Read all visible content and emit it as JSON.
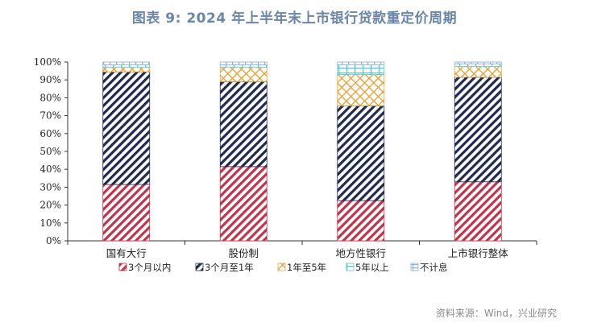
{
  "title": "图表 9:  2024 年上半年末上市银行贷款重定价周期",
  "source": "资料来源：Wind，兴业研究",
  "chart_data": {
    "type": "bar",
    "stacked": true,
    "categories": [
      "国有大行",
      "股份制",
      "地方性银行",
      "上市银行整体"
    ],
    "y_ticks": [
      "0%",
      "10%",
      "20%",
      "30%",
      "40%",
      "50%",
      "60%",
      "70%",
      "80%",
      "90%",
      "100%"
    ],
    "ylim": [
      0,
      100
    ],
    "grid": false,
    "legend_position": "bottom",
    "series": [
      {
        "name": "3个月以内",
        "values": [
          31.5,
          41.5,
          22.5,
          33.0
        ],
        "color": "#c0334a",
        "pattern": "diag-right"
      },
      {
        "name": "3个月至1年",
        "values": [
          63.0,
          47.5,
          53.0,
          58.5
        ],
        "color": "#1f2a4e",
        "pattern": "diag-right"
      },
      {
        "name": "1年至5年",
        "values": [
          2.5,
          8.0,
          17.5,
          6.0
        ],
        "color": "#e8a33a",
        "pattern": "crosshatch"
      },
      {
        "name": "5年以上",
        "values": [
          1.5,
          1.5,
          5.5,
          1.5
        ],
        "color": "#58c8d0",
        "pattern": "grid"
      },
      {
        "name": "不计息",
        "values": [
          1.5,
          1.5,
          1.5,
          1.0
        ],
        "color": "#8fb0d8",
        "pattern": "grid"
      }
    ]
  }
}
